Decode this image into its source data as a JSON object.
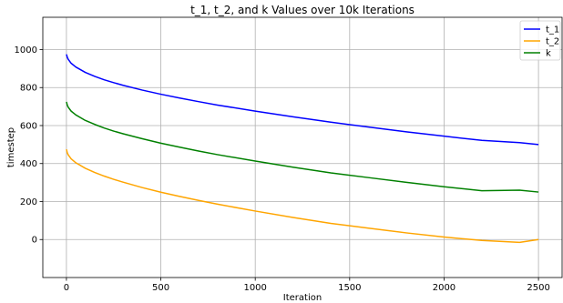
{
  "chart_data": {
    "type": "line",
    "title": "t_1, t_2, and k Values over 10k Iterations",
    "xlabel": "Iteration",
    "ylabel": "timestep",
    "xlim": [
      -125,
      2625
    ],
    "ylim": [
      -200,
      1170
    ],
    "xticks": [
      0,
      500,
      1000,
      1500,
      2000,
      2500
    ],
    "yticks": [
      0,
      200,
      400,
      600,
      800,
      1000
    ],
    "grid": true,
    "legend_position": "top-right",
    "series": [
      {
        "name": "t_1",
        "color": "#0000ff",
        "x": [
          0,
          5,
          10,
          25,
          50,
          100,
          150,
          200,
          250,
          300,
          400,
          500,
          600,
          700,
          800,
          1000,
          1200,
          1400,
          1600,
          1800,
          2000,
          2200,
          2400,
          2500
        ],
        "y": [
          975,
          958,
          948,
          928,
          908,
          880,
          859,
          841,
          826,
          812,
          787,
          765,
          745,
          726,
          708,
          676,
          646,
          618,
          592,
          567,
          544,
          522,
          510,
          500
        ]
      },
      {
        "name": "t_2",
        "color": "#ffa500",
        "x": [
          0,
          5,
          10,
          25,
          50,
          100,
          150,
          200,
          250,
          300,
          400,
          500,
          600,
          700,
          800,
          1000,
          1200,
          1400,
          1600,
          1800,
          2000,
          2200,
          2400,
          2500
        ],
        "y": [
          475,
          455,
          445,
          425,
          404,
          375,
          353,
          334,
          317,
          302,
          274,
          249,
          227,
          206,
          186,
          150,
          116,
          85,
          60,
          35,
          13,
          -5,
          -15,
          0
        ]
      },
      {
        "name": "k",
        "color": "#008000",
        "x": [
          0,
          5,
          10,
          25,
          50,
          100,
          150,
          200,
          250,
          300,
          400,
          500,
          600,
          700,
          800,
          1000,
          1200,
          1400,
          1600,
          1800,
          2000,
          2200,
          2400,
          2500
        ],
        "y": [
          725,
          706,
          696,
          676,
          656,
          627,
          606,
          587,
          571,
          557,
          531,
          507,
          486,
          466,
          447,
          413,
          381,
          351,
          326,
          301,
          278,
          257,
          260,
          250
        ]
      }
    ]
  }
}
